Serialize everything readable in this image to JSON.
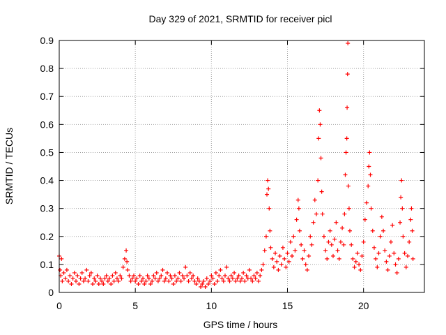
{
  "chart_data": {
    "type": "scatter",
    "title": "Day 329 of 2021, SRMTID for receiver picl",
    "xlabel": "GPS time / hours",
    "ylabel": "SRMTID / TECUs",
    "xlim": [
      0,
      24
    ],
    "ylim": [
      0,
      0.9
    ],
    "xticks": [
      0,
      5,
      10,
      15,
      20
    ],
    "yticks": [
      0,
      0.1,
      0.2,
      0.3,
      0.4,
      0.5,
      0.6,
      0.7,
      0.8,
      0.9
    ],
    "xtick_labels": [
      "0",
      "5",
      "10",
      "15",
      "20"
    ],
    "ytick_labels": [
      "0",
      "0.1",
      "0.2",
      "0.3",
      "0.4",
      "0.5",
      "0.6",
      "0.7",
      "0.8",
      "0.9"
    ],
    "grid": true,
    "marker": "+",
    "series": [
      {
        "name": "SRMTID",
        "color": "#ff0000",
        "points": [
          [
            0.0,
            0.13
          ],
          [
            0.05,
            0.08
          ],
          [
            0.1,
            0.06
          ],
          [
            0.15,
            0.12
          ],
          [
            0.2,
            0.04
          ],
          [
            0.3,
            0.07
          ],
          [
            0.4,
            0.05
          ],
          [
            0.5,
            0.08
          ],
          [
            0.6,
            0.04
          ],
          [
            0.7,
            0.06
          ],
          [
            0.8,
            0.03
          ],
          [
            0.9,
            0.05
          ],
          [
            1.0,
            0.07
          ],
          [
            1.1,
            0.04
          ],
          [
            1.2,
            0.06
          ],
          [
            1.3,
            0.03
          ],
          [
            1.4,
            0.05
          ],
          [
            1.5,
            0.07
          ],
          [
            1.6,
            0.04
          ],
          [
            1.7,
            0.05
          ],
          [
            1.8,
            0.08
          ],
          [
            1.9,
            0.04
          ],
          [
            2.0,
            0.06
          ],
          [
            2.1,
            0.07
          ],
          [
            2.2,
            0.03
          ],
          [
            2.3,
            0.05
          ],
          [
            2.4,
            0.04
          ],
          [
            2.5,
            0.06
          ],
          [
            2.6,
            0.03
          ],
          [
            2.7,
            0.05
          ],
          [
            2.8,
            0.04
          ],
          [
            2.9,
            0.03
          ],
          [
            3.0,
            0.05
          ],
          [
            3.1,
            0.06
          ],
          [
            3.2,
            0.04
          ],
          [
            3.3,
            0.05
          ],
          [
            3.4,
            0.03
          ],
          [
            3.5,
            0.06
          ],
          [
            3.6,
            0.04
          ],
          [
            3.7,
            0.07
          ],
          [
            3.8,
            0.05
          ],
          [
            3.9,
            0.04
          ],
          [
            4.0,
            0.06
          ],
          [
            4.1,
            0.05
          ],
          [
            4.2,
            0.09
          ],
          [
            4.3,
            0.12
          ],
          [
            4.4,
            0.15
          ],
          [
            4.45,
            0.11
          ],
          [
            4.5,
            0.08
          ],
          [
            4.6,
            0.06
          ],
          [
            4.7,
            0.04
          ],
          [
            4.8,
            0.05
          ],
          [
            4.9,
            0.06
          ],
          [
            5.0,
            0.04
          ],
          [
            5.1,
            0.05
          ],
          [
            5.2,
            0.03
          ],
          [
            5.3,
            0.06
          ],
          [
            5.4,
            0.04
          ],
          [
            5.5,
            0.05
          ],
          [
            5.6,
            0.03
          ],
          [
            5.7,
            0.04
          ],
          [
            5.8,
            0.06
          ],
          [
            5.9,
            0.05
          ],
          [
            6.0,
            0.03
          ],
          [
            6.1,
            0.04
          ],
          [
            6.2,
            0.06
          ],
          [
            6.3,
            0.05
          ],
          [
            6.4,
            0.07
          ],
          [
            6.5,
            0.04
          ],
          [
            6.6,
            0.05
          ],
          [
            6.7,
            0.06
          ],
          [
            6.8,
            0.08
          ],
          [
            6.9,
            0.04
          ],
          [
            7.0,
            0.05
          ],
          [
            7.1,
            0.07
          ],
          [
            7.2,
            0.04
          ],
          [
            7.3,
            0.06
          ],
          [
            7.4,
            0.05
          ],
          [
            7.5,
            0.03
          ],
          [
            7.6,
            0.06
          ],
          [
            7.7,
            0.04
          ],
          [
            7.8,
            0.05
          ],
          [
            7.9,
            0.07
          ],
          [
            8.0,
            0.04
          ],
          [
            8.1,
            0.06
          ],
          [
            8.2,
            0.05
          ],
          [
            8.3,
            0.09
          ],
          [
            8.4,
            0.06
          ],
          [
            8.5,
            0.04
          ],
          [
            8.6,
            0.07
          ],
          [
            8.7,
            0.05
          ],
          [
            8.8,
            0.06
          ],
          [
            8.9,
            0.04
          ],
          [
            9.0,
            0.03
          ],
          [
            9.1,
            0.05
          ],
          [
            9.2,
            0.04
          ],
          [
            9.3,
            0.02
          ],
          [
            9.4,
            0.03
          ],
          [
            9.5,
            0.04
          ],
          [
            9.6,
            0.02
          ],
          [
            9.7,
            0.05
          ],
          [
            9.8,
            0.03
          ],
          [
            9.9,
            0.04
          ],
          [
            10.0,
            0.06
          ],
          [
            10.1,
            0.05
          ],
          [
            10.2,
            0.03
          ],
          [
            10.3,
            0.07
          ],
          [
            10.4,
            0.04
          ],
          [
            10.5,
            0.06
          ],
          [
            10.6,
            0.08
          ],
          [
            10.7,
            0.05
          ],
          [
            10.8,
            0.04
          ],
          [
            10.9,
            0.06
          ],
          [
            11.0,
            0.09
          ],
          [
            11.1,
            0.05
          ],
          [
            11.2,
            0.04
          ],
          [
            11.3,
            0.06
          ],
          [
            11.4,
            0.05
          ],
          [
            11.5,
            0.07
          ],
          [
            11.6,
            0.04
          ],
          [
            11.7,
            0.05
          ],
          [
            11.8,
            0.06
          ],
          [
            11.9,
            0.04
          ],
          [
            12.0,
            0.05
          ],
          [
            12.1,
            0.07
          ],
          [
            12.2,
            0.04
          ],
          [
            12.3,
            0.06
          ],
          [
            12.4,
            0.05
          ],
          [
            12.5,
            0.08
          ],
          [
            12.6,
            0.05
          ],
          [
            12.7,
            0.04
          ],
          [
            12.8,
            0.06
          ],
          [
            12.9,
            0.05
          ],
          [
            13.0,
            0.07
          ],
          [
            13.1,
            0.04
          ],
          [
            13.2,
            0.06
          ],
          [
            13.3,
            0.08
          ],
          [
            13.4,
            0.1
          ],
          [
            13.5,
            0.15
          ],
          [
            13.6,
            0.2
          ],
          [
            13.65,
            0.35
          ],
          [
            13.7,
            0.4
          ],
          [
            13.75,
            0.37
          ],
          [
            13.8,
            0.3
          ],
          [
            13.85,
            0.22
          ],
          [
            13.9,
            0.16
          ],
          [
            14.0,
            0.12
          ],
          [
            14.1,
            0.09
          ],
          [
            14.2,
            0.14
          ],
          [
            14.3,
            0.11
          ],
          [
            14.4,
            0.08
          ],
          [
            14.5,
            0.13
          ],
          [
            14.6,
            0.1
          ],
          [
            14.7,
            0.16
          ],
          [
            14.8,
            0.12
          ],
          [
            14.9,
            0.09
          ],
          [
            15.0,
            0.14
          ],
          [
            15.1,
            0.11
          ],
          [
            15.2,
            0.18
          ],
          [
            15.3,
            0.13
          ],
          [
            15.4,
            0.2
          ],
          [
            15.5,
            0.15
          ],
          [
            15.6,
            0.26
          ],
          [
            15.7,
            0.33
          ],
          [
            15.75,
            0.3
          ],
          [
            15.8,
            0.22
          ],
          [
            15.9,
            0.17
          ],
          [
            16.0,
            0.12
          ],
          [
            16.1,
            0.15
          ],
          [
            16.2,
            0.1
          ],
          [
            16.3,
            0.08
          ],
          [
            16.4,
            0.13
          ],
          [
            16.5,
            0.2
          ],
          [
            16.6,
            0.17
          ],
          [
            16.7,
            0.25
          ],
          [
            16.8,
            0.33
          ],
          [
            16.9,
            0.28
          ],
          [
            17.0,
            0.4
          ],
          [
            17.05,
            0.55
          ],
          [
            17.1,
            0.65
          ],
          [
            17.15,
            0.6
          ],
          [
            17.2,
            0.48
          ],
          [
            17.25,
            0.36
          ],
          [
            17.3,
            0.28
          ],
          [
            17.4,
            0.2
          ],
          [
            17.5,
            0.15
          ],
          [
            17.6,
            0.12
          ],
          [
            17.7,
            0.18
          ],
          [
            17.8,
            0.22
          ],
          [
            17.9,
            0.17
          ],
          [
            18.0,
            0.13
          ],
          [
            18.1,
            0.19
          ],
          [
            18.2,
            0.25
          ],
          [
            18.3,
            0.15
          ],
          [
            18.4,
            0.12
          ],
          [
            18.5,
            0.18
          ],
          [
            18.6,
            0.23
          ],
          [
            18.7,
            0.17
          ],
          [
            18.75,
            0.28
          ],
          [
            18.8,
            0.42
          ],
          [
            18.85,
            0.5
          ],
          [
            18.9,
            0.55
          ],
          [
            18.92,
            0.66
          ],
          [
            18.95,
            0.78
          ],
          [
            18.97,
            0.89
          ],
          [
            19.0,
            0.38
          ],
          [
            19.05,
            0.3
          ],
          [
            19.1,
            0.22
          ],
          [
            19.2,
            0.17
          ],
          [
            19.3,
            0.12
          ],
          [
            19.4,
            0.09
          ],
          [
            19.5,
            0.11
          ],
          [
            19.6,
            0.14
          ],
          [
            19.7,
            0.1
          ],
          [
            19.8,
            0.08
          ],
          [
            19.9,
            0.13
          ],
          [
            20.0,
            0.18
          ],
          [
            20.1,
            0.26
          ],
          [
            20.2,
            0.32
          ],
          [
            20.3,
            0.38
          ],
          [
            20.35,
            0.45
          ],
          [
            20.4,
            0.5
          ],
          [
            20.45,
            0.42
          ],
          [
            20.5,
            0.3
          ],
          [
            20.6,
            0.22
          ],
          [
            20.7,
            0.16
          ],
          [
            20.8,
            0.12
          ],
          [
            20.9,
            0.09
          ],
          [
            21.0,
            0.14
          ],
          [
            21.1,
            0.2
          ],
          [
            21.2,
            0.27
          ],
          [
            21.3,
            0.22
          ],
          [
            21.4,
            0.15
          ],
          [
            21.5,
            0.11
          ],
          [
            21.6,
            0.08
          ],
          [
            21.7,
            0.13
          ],
          [
            21.8,
            0.18
          ],
          [
            21.9,
            0.24
          ],
          [
            22.0,
            0.14
          ],
          [
            22.1,
            0.1
          ],
          [
            22.2,
            0.07
          ],
          [
            22.3,
            0.12
          ],
          [
            22.4,
            0.25
          ],
          [
            22.45,
            0.34
          ],
          [
            22.5,
            0.4
          ],
          [
            22.55,
            0.3
          ],
          [
            22.6,
            0.2
          ],
          [
            22.7,
            0.14
          ],
          [
            22.8,
            0.09
          ],
          [
            22.9,
            0.13
          ],
          [
            23.0,
            0.18
          ],
          [
            23.1,
            0.26
          ],
          [
            23.15,
            0.3
          ],
          [
            23.2,
            0.22
          ],
          [
            23.25,
            0.12
          ]
        ]
      }
    ]
  }
}
